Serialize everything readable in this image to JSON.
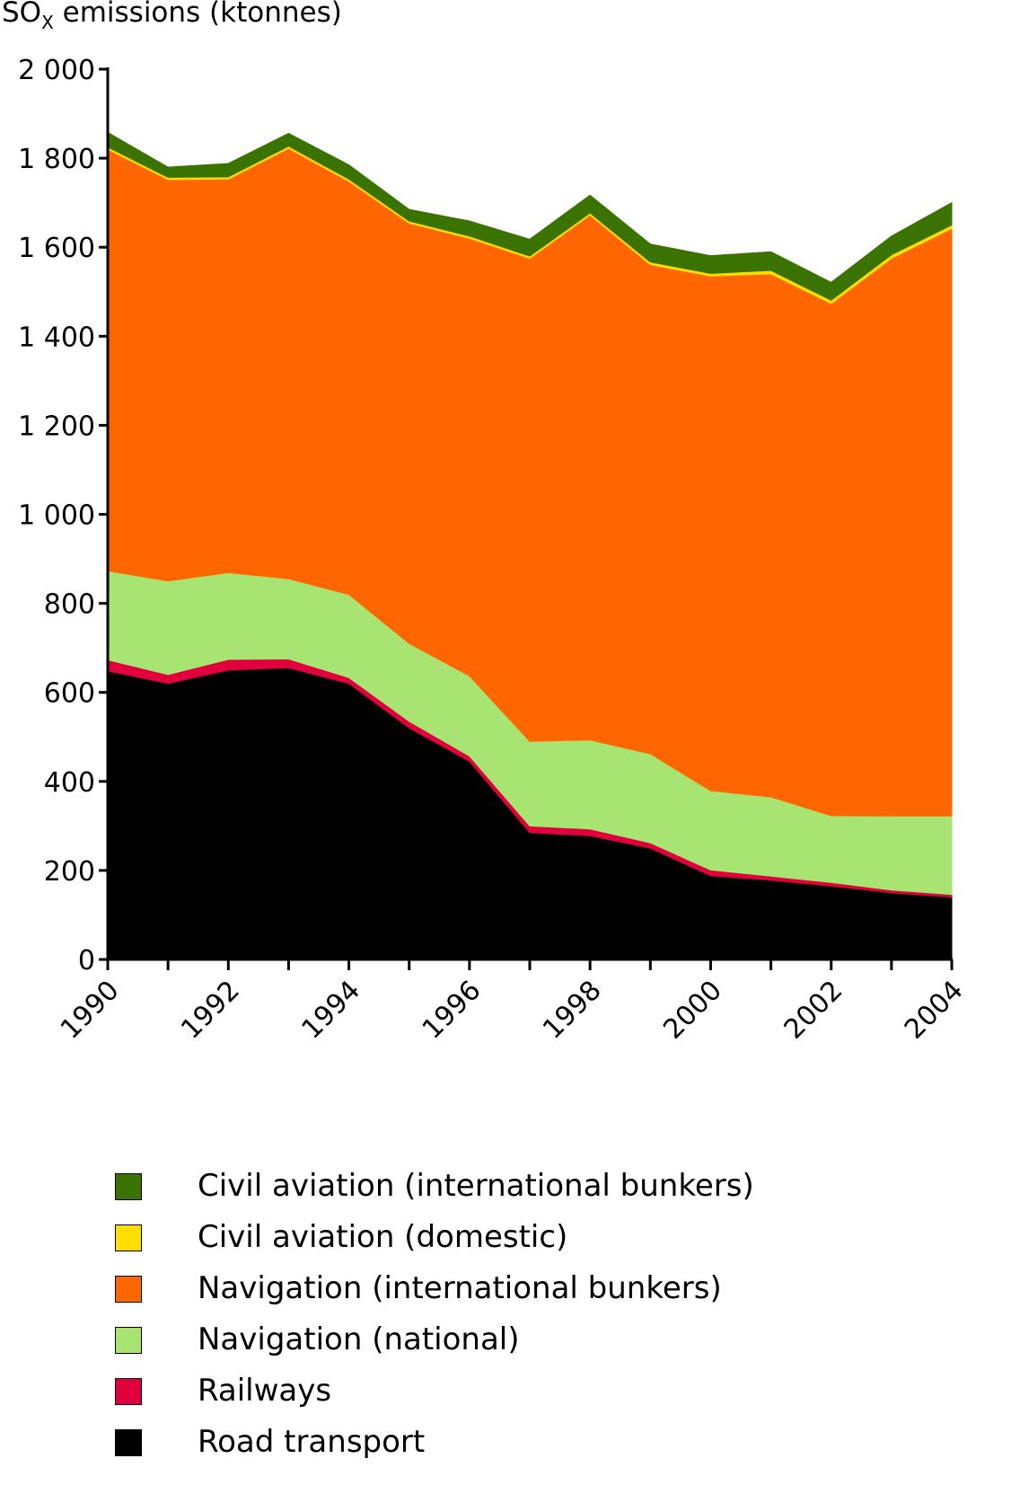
{
  "chart_data": {
    "type": "area",
    "stacked": true,
    "title": "",
    "ylabel_main": "SO",
    "ylabel_sub": "X",
    "ylabel_rest": " emissions (ktonnes)",
    "xlabel": "",
    "ylim": [
      0,
      2000
    ],
    "yticks": [
      0,
      200,
      400,
      600,
      800,
      1000,
      1200,
      1400,
      1600,
      1800,
      2000
    ],
    "ytick_labels": [
      "0",
      "200",
      "400",
      "600",
      "800",
      "1 000",
      "1 200",
      "1 400",
      "1 600",
      "1 800",
      "2 000"
    ],
    "x": [
      1990,
      1991,
      1992,
      1993,
      1994,
      1995,
      1996,
      1997,
      1998,
      1999,
      2000,
      2001,
      2002,
      2003,
      2004
    ],
    "xtick_labels": [
      "1990",
      "1992",
      "1994",
      "1996",
      "1998",
      "2000",
      "2002",
      "2004"
    ],
    "grid": false,
    "legend_position": "bottom",
    "series": [
      {
        "name": "Road transport",
        "color": "#000000",
        "values": [
          648,
          620,
          650,
          655,
          620,
          520,
          445,
          285,
          278,
          250,
          188,
          178,
          165,
          150,
          140
        ]
      },
      {
        "name": "Railways",
        "color": "#e0003c",
        "values": [
          25,
          20,
          24,
          20,
          13,
          15,
          12,
          15,
          15,
          12,
          13,
          9,
          8,
          6,
          6
        ]
      },
      {
        "name": "Navigation (national)",
        "color": "#a8e472",
        "values": [
          200,
          210,
          195,
          180,
          187,
          175,
          180,
          190,
          200,
          200,
          178,
          178,
          150,
          166,
          176
        ]
      },
      {
        "name": "Navigation (international bunkers)",
        "color": "#ff6600",
        "values": [
          947,
          902,
          884,
          967,
          928,
          944,
          983,
          1085,
          1179,
          1099,
          1156,
          1175,
          1150,
          1253,
          1320
        ]
      },
      {
        "name": "Civil aviation (domestic)",
        "color": "#ffdd00",
        "values": [
          5,
          5,
          5,
          5,
          5,
          5,
          5,
          5,
          5,
          6,
          6,
          8,
          8,
          8,
          8
        ]
      },
      {
        "name": "Civil aviation (international bunkers)",
        "color": "#3a7300",
        "values": [
          33,
          23,
          30,
          29,
          32,
          26,
          34,
          38,
          40,
          40,
          40,
          42,
          40,
          42,
          50
        ]
      }
    ]
  },
  "legend": {
    "items": [
      {
        "label": "Civil aviation (international bunkers)",
        "color": "#3a7300"
      },
      {
        "label": "Civil aviation (domestic)",
        "color": "#ffdd00"
      },
      {
        "label": "Navigation (international bunkers)",
        "color": "#ff6600"
      },
      {
        "label": "Navigation (national)",
        "color": "#a8e472"
      },
      {
        "label": "Railways",
        "color": "#e0003c"
      },
      {
        "label": "Road transport",
        "color": "#000000"
      }
    ]
  }
}
